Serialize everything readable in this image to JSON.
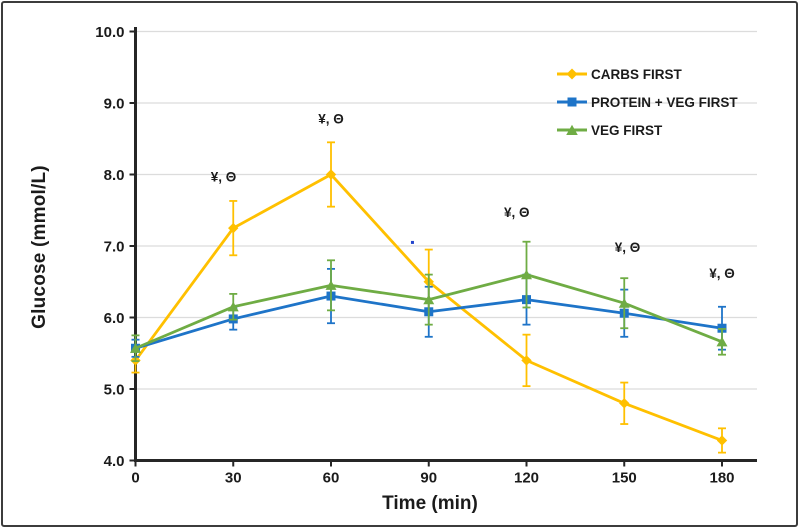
{
  "chart_data": {
    "type": "line",
    "title": "",
    "xlabel": "Time (min)",
    "ylabel": "Glucose (mmol/L)",
    "x": [
      0,
      30,
      60,
      90,
      120,
      150,
      180
    ],
    "x_ticks": [
      "0",
      "30",
      "60",
      "90",
      "120",
      "150",
      "180"
    ],
    "y_ticks": [
      "10.0",
      "9.0",
      "8.0",
      "7.0",
      "6.0",
      "5.0",
      "4.0"
    ],
    "ylim": [
      4.0,
      10.0
    ],
    "xlim": [
      0,
      190
    ],
    "grid": "horizontal",
    "legend_position": "upper-right-inside",
    "series": [
      {
        "name": "CARBS FIRST",
        "color": "#FFC000",
        "marker": "diamond",
        "values": [
          5.4,
          7.25,
          8.0,
          6.5,
          5.4,
          4.8,
          4.28
        ],
        "errors": [
          0.17,
          0.38,
          0.45,
          0.45,
          0.36,
          0.29,
          0.17
        ]
      },
      {
        "name": "PROTEIN + VEG FIRST",
        "color": "#1E74C8",
        "marker": "square",
        "values": [
          5.57,
          5.98,
          6.3,
          6.08,
          6.25,
          6.06,
          5.85
        ],
        "errors": [
          0.12,
          0.15,
          0.38,
          0.35,
          0.35,
          0.33,
          0.3
        ]
      },
      {
        "name": "VEG FIRST",
        "color": "#6FAC44",
        "marker": "triangle",
        "values": [
          5.57,
          6.15,
          6.45,
          6.25,
          6.6,
          6.2,
          5.66
        ],
        "errors": [
          0.18,
          0.18,
          0.35,
          0.35,
          0.46,
          0.35,
          0.18
        ]
      }
    ],
    "annotations": [
      {
        "t": 27,
        "v": 7.97,
        "text": "¥, Θ"
      },
      {
        "t": 60,
        "v": 8.78,
        "text": "¥, Θ"
      },
      {
        "t": 117,
        "v": 7.47,
        "text": "¥, Θ"
      },
      {
        "t": 151,
        "v": 6.98,
        "text": "¥, Θ"
      },
      {
        "t": 180,
        "v": 6.62,
        "text": "¥, Θ"
      }
    ],
    "stray_mark": {
      "t": 85,
      "v": 7.05,
      "color": "#2244CC"
    }
  },
  "colors": {
    "grid": "#DCDCDC",
    "axis": "#262626",
    "text": "#1B1B1B",
    "border": "#3C3C3C",
    "background": "#FFFFFF"
  }
}
